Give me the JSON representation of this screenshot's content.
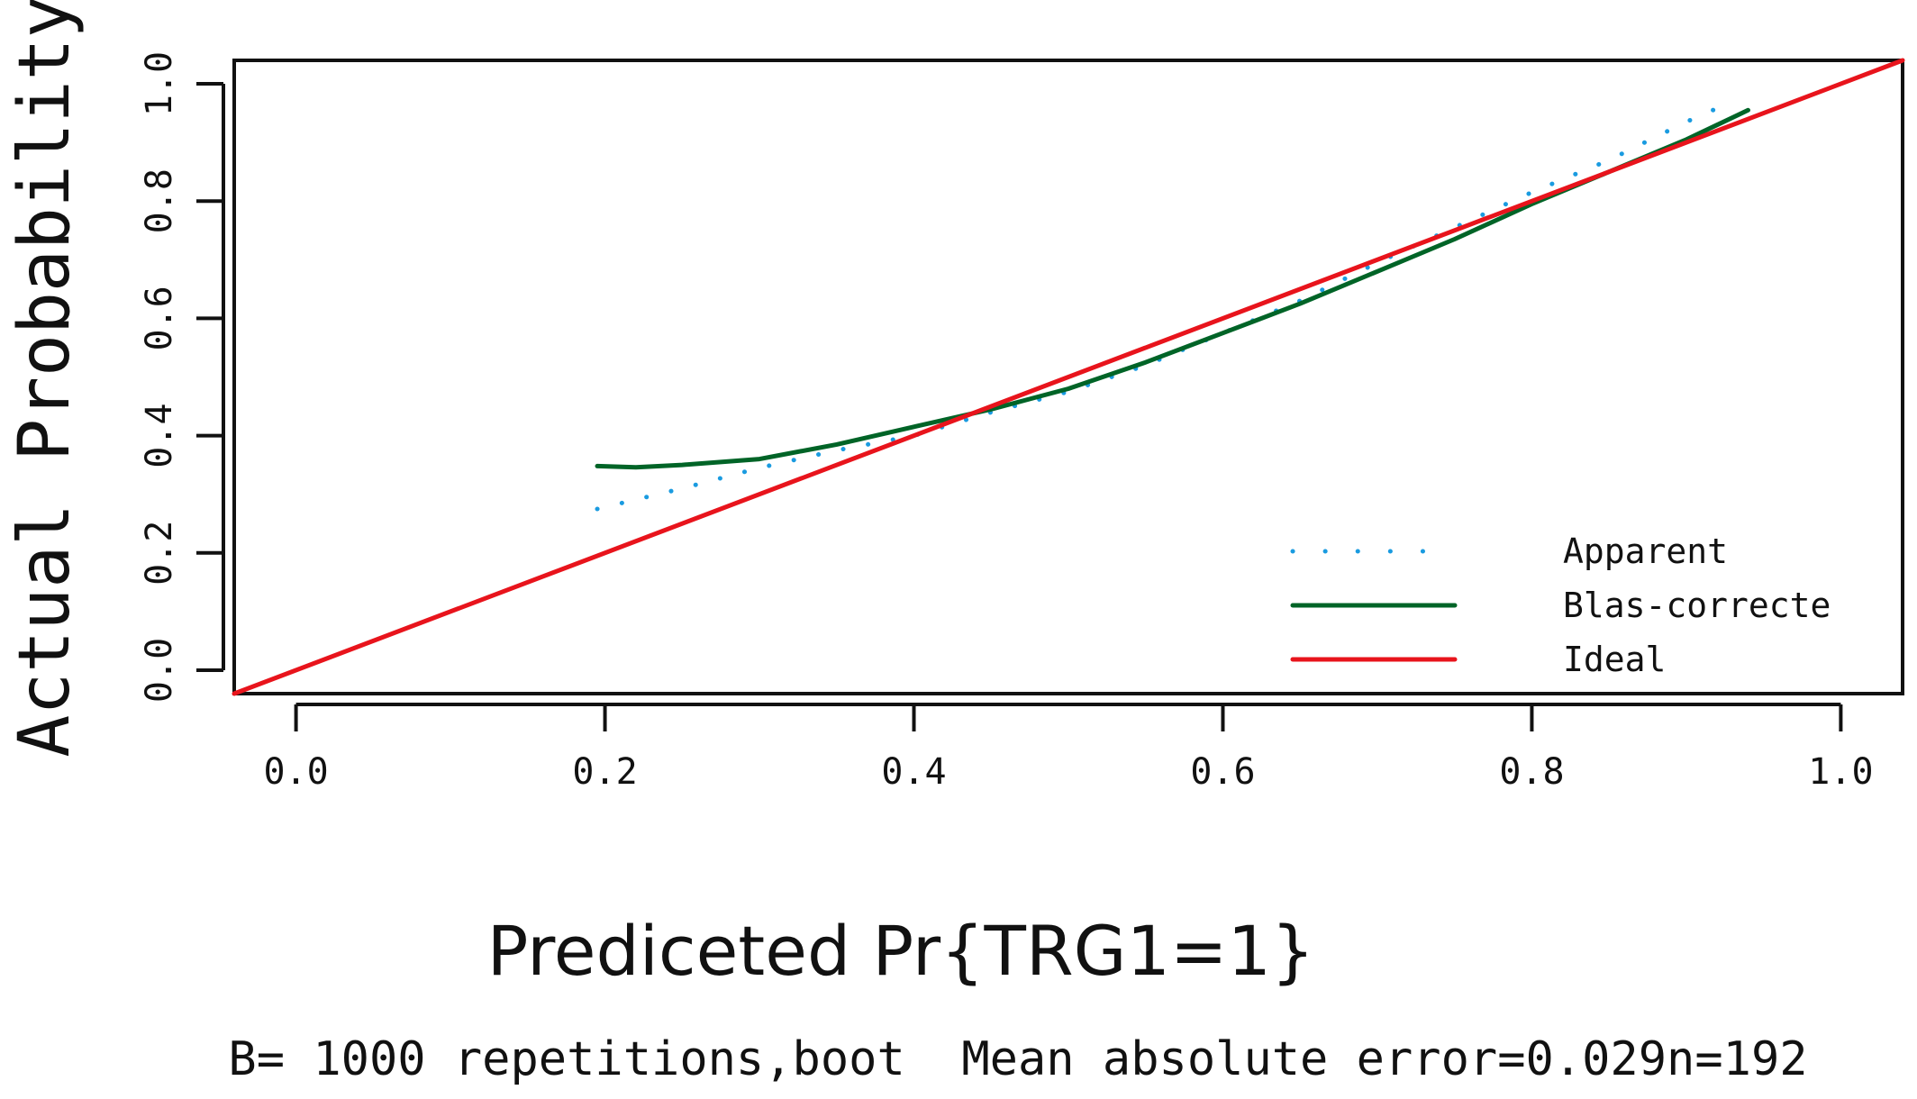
{
  "chart_data": {
    "type": "line",
    "xlabel": "Prediceted Pr{TRG1=1}",
    "ylabel": "Actual Probability",
    "footnote": "B= 1000 repetitions,boot  Mean absolute error=0.029n=192",
    "xlim": [
      -0.04,
      1.04
    ],
    "ylim": [
      -0.04,
      1.04
    ],
    "x_ticks": [
      "0.0",
      "0.2",
      "0.4",
      "0.6",
      "0.8",
      "1.0"
    ],
    "y_ticks": [
      "0.0",
      "0.2",
      "0.4",
      "0.6",
      "0.8",
      "1.0"
    ],
    "grid": false,
    "legend_position": "bottom-right",
    "series": [
      {
        "name": "Apparent",
        "color": "#1a9be0",
        "style": "dotted",
        "x": [
          0.195,
          0.25,
          0.3,
          0.35,
          0.4,
          0.45,
          0.5,
          0.55,
          0.6,
          0.65,
          0.7,
          0.75,
          0.8,
          0.85,
          0.9,
          0.93
        ],
        "y": [
          0.275,
          0.31,
          0.345,
          0.375,
          0.4,
          0.44,
          0.475,
          0.52,
          0.575,
          0.63,
          0.695,
          0.755,
          0.815,
          0.87,
          0.935,
          0.97
        ]
      },
      {
        "name": "Blas-correcte",
        "color": "#006427",
        "style": "solid",
        "x": [
          0.195,
          0.22,
          0.25,
          0.3,
          0.35,
          0.4,
          0.45,
          0.5,
          0.55,
          0.6,
          0.65,
          0.7,
          0.75,
          0.8,
          0.85,
          0.9,
          0.94
        ],
        "y": [
          0.348,
          0.346,
          0.35,
          0.36,
          0.385,
          0.415,
          0.445,
          0.48,
          0.525,
          0.575,
          0.625,
          0.68,
          0.735,
          0.795,
          0.85,
          0.905,
          0.955
        ]
      },
      {
        "name": "Ideal",
        "color": "#e8141c",
        "style": "solid",
        "x": [
          -0.04,
          1.04
        ],
        "y": [
          -0.04,
          1.04
        ]
      }
    ]
  }
}
